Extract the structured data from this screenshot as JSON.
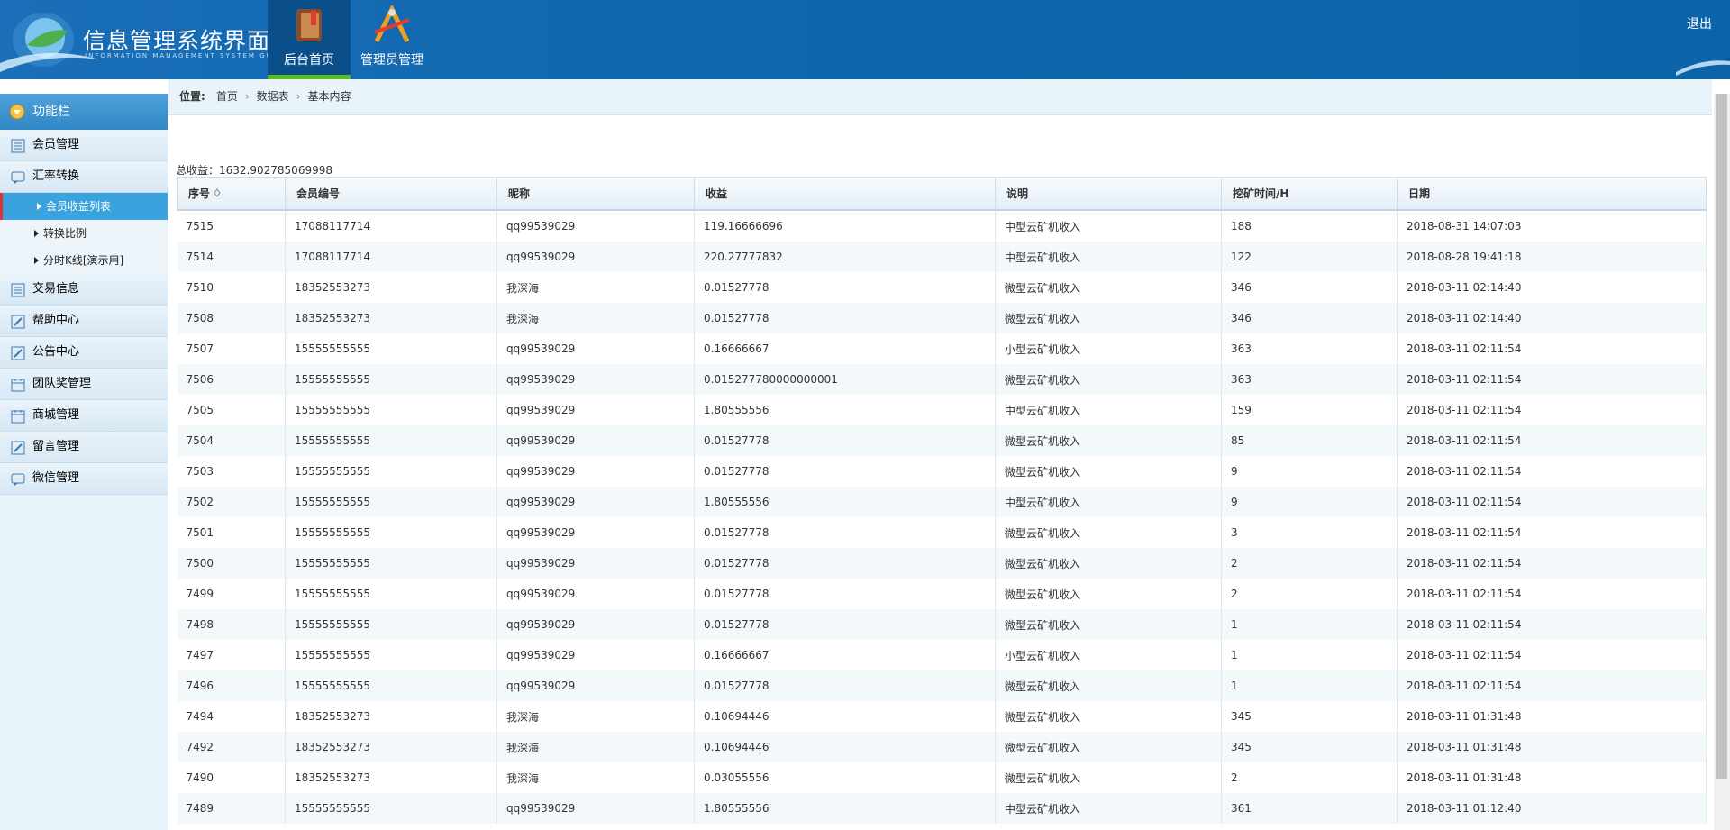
{
  "header": {
    "title": "信息管理系统界面",
    "subtitle": "INFORMATION MANAGEMENT SYSTEM GUI",
    "nav": [
      "后台首页",
      "管理员管理"
    ],
    "logout": "退出"
  },
  "sidebar": {
    "title": "功能栏",
    "items": [
      {
        "label": "会员管理"
      },
      {
        "label": "汇率转换",
        "children": [
          "会员收益列表",
          "转换比例",
          "分时K线[演示用]"
        ]
      },
      {
        "label": "交易信息"
      },
      {
        "label": "帮助中心"
      },
      {
        "label": "公告中心"
      },
      {
        "label": "团队奖管理"
      },
      {
        "label": "商城管理"
      },
      {
        "label": "留言管理"
      },
      {
        "label": "微信管理"
      }
    ]
  },
  "breadcrumb": {
    "label": "位置:",
    "items": [
      "首页",
      "数据表",
      "基本内容"
    ]
  },
  "summary": {
    "label": "总收益：",
    "value": "1632.902785069998"
  },
  "table": {
    "columns": [
      "序号",
      "会员编号",
      "昵称",
      "收益",
      "说明",
      "挖矿时间/H",
      "日期"
    ],
    "rows": [
      [
        "7515",
        "17088117714",
        "qq99539029",
        "119.16666696",
        "中型云矿机收入",
        "188",
        "2018-08-31 14:07:03"
      ],
      [
        "7514",
        "17088117714",
        "qq99539029",
        "220.27777832",
        "中型云矿机收入",
        "122",
        "2018-08-28 19:41:18"
      ],
      [
        "7510",
        "18352553273",
        "我深海",
        "0.01527778",
        "微型云矿机收入",
        "346",
        "2018-03-11 02:14:40"
      ],
      [
        "7508",
        "18352553273",
        "我深海",
        "0.01527778",
        "微型云矿机收入",
        "346",
        "2018-03-11 02:14:40"
      ],
      [
        "7507",
        "15555555555",
        "qq99539029",
        "0.16666667",
        "小型云矿机收入",
        "363",
        "2018-03-11 02:11:54"
      ],
      [
        "7506",
        "15555555555",
        "qq99539029",
        "0.015277780000000001",
        "微型云矿机收入",
        "363",
        "2018-03-11 02:11:54"
      ],
      [
        "7505",
        "15555555555",
        "qq99539029",
        "1.80555556",
        "中型云矿机收入",
        "159",
        "2018-03-11 02:11:54"
      ],
      [
        "7504",
        "15555555555",
        "qq99539029",
        "0.01527778",
        "微型云矿机收入",
        "85",
        "2018-03-11 02:11:54"
      ],
      [
        "7503",
        "15555555555",
        "qq99539029",
        "0.01527778",
        "微型云矿机收入",
        "9",
        "2018-03-11 02:11:54"
      ],
      [
        "7502",
        "15555555555",
        "qq99539029",
        "1.80555556",
        "中型云矿机收入",
        "9",
        "2018-03-11 02:11:54"
      ],
      [
        "7501",
        "15555555555",
        "qq99539029",
        "0.01527778",
        "微型云矿机收入",
        "3",
        "2018-03-11 02:11:54"
      ],
      [
        "7500",
        "15555555555",
        "qq99539029",
        "0.01527778",
        "微型云矿机收入",
        "2",
        "2018-03-11 02:11:54"
      ],
      [
        "7499",
        "15555555555",
        "qq99539029",
        "0.01527778",
        "微型云矿机收入",
        "2",
        "2018-03-11 02:11:54"
      ],
      [
        "7498",
        "15555555555",
        "qq99539029",
        "0.01527778",
        "微型云矿机收入",
        "1",
        "2018-03-11 02:11:54"
      ],
      [
        "7497",
        "15555555555",
        "qq99539029",
        "0.16666667",
        "小型云矿机收入",
        "1",
        "2018-03-11 02:11:54"
      ],
      [
        "7496",
        "15555555555",
        "qq99539029",
        "0.01527778",
        "微型云矿机收入",
        "1",
        "2018-03-11 02:11:54"
      ],
      [
        "7494",
        "18352553273",
        "我深海",
        "0.10694446",
        "微型云矿机收入",
        "345",
        "2018-03-11 01:31:48"
      ],
      [
        "7492",
        "18352553273",
        "我深海",
        "0.10694446",
        "微型云矿机收入",
        "345",
        "2018-03-11 01:31:48"
      ],
      [
        "7490",
        "18352553273",
        "我深海",
        "0.03055556",
        "微型云矿机收入",
        "2",
        "2018-03-11 01:31:48"
      ],
      [
        "7489",
        "15555555555",
        "qq99539029",
        "1.80555556",
        "中型云矿机收入",
        "361",
        "2018-03-11 01:12:40"
      ]
    ]
  }
}
